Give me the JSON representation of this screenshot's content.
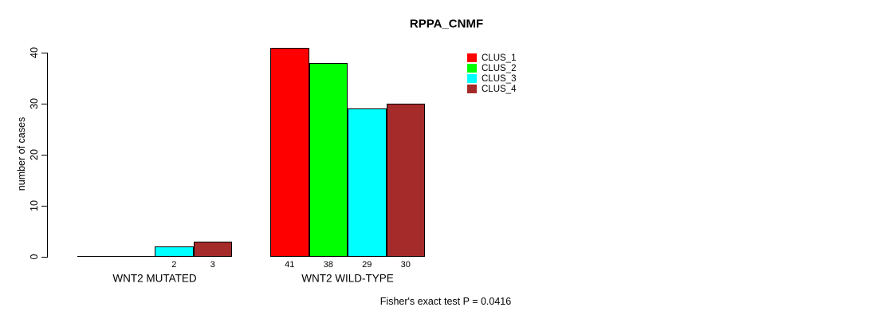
{
  "chart_data": {
    "type": "bar",
    "title": "RPPA_CNMF",
    "ylabel": "number of cases",
    "ylim": [
      0,
      41
    ],
    "yticks": [
      0,
      10,
      20,
      30,
      40
    ],
    "grid": false,
    "legend_position": "top-right",
    "background": "#ffffff",
    "axis_color": "#000000",
    "categories": [
      "WNT2 MUTATED",
      "WNT2 WILD-TYPE"
    ],
    "series": [
      {
        "name": "CLUS_1",
        "color": "#FF0000",
        "values": [
          0,
          41
        ]
      },
      {
        "name": "CLUS_2",
        "color": "#00FF00",
        "values": [
          0,
          38
        ]
      },
      {
        "name": "CLUS_3",
        "color": "#00FFFF",
        "values": [
          2,
          29
        ]
      },
      {
        "name": "CLUS_4",
        "color": "#A52A2A",
        "values": [
          3,
          30
        ]
      }
    ],
    "bar_value_labels": [
      [
        "",
        "",
        "2",
        "3"
      ],
      [
        "41",
        "38",
        "29",
        "30"
      ]
    ],
    "annotation": "Fisher's exact test P = 0.0416"
  }
}
